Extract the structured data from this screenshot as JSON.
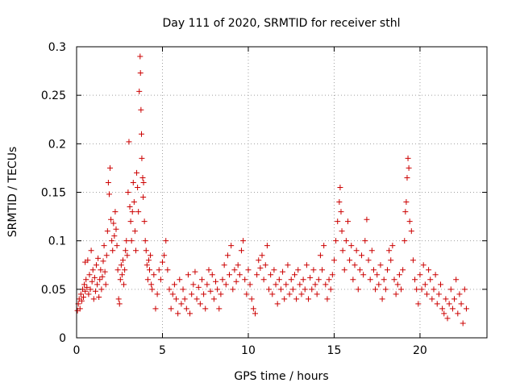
{
  "chart_data": {
    "type": "scatter",
    "title": "Day 111 of 2020, SRMTID for receiver sthl",
    "xlabel": "GPS time / hours",
    "ylabel": "SRMTID / TECUs",
    "xlim": [
      0,
      23.9
    ],
    "ylim": [
      0,
      0.3
    ],
    "xticks": [
      0,
      5,
      10,
      15,
      20
    ],
    "xtick_labels": [
      "0",
      "5",
      "10",
      "15",
      "20"
    ],
    "yticks": [
      0,
      0.05,
      0.1,
      0.15,
      0.2,
      0.25,
      0.3
    ],
    "ytick_labels": [
      "0",
      "0.05",
      "0.1",
      "0.15",
      "0.2",
      "0.25",
      "0.3"
    ],
    "grid": true,
    "marker": "+",
    "color": "#cc0000",
    "series": [
      {
        "name": "SRMTID",
        "points": [
          [
            0.05,
            0.028
          ],
          [
            0.1,
            0.035
          ],
          [
            0.15,
            0.04
          ],
          [
            0.2,
            0.03
          ],
          [
            0.25,
            0.045
          ],
          [
            0.3,
            0.038
          ],
          [
            0.35,
            0.05
          ],
          [
            0.4,
            0.042
          ],
          [
            0.45,
            0.055
          ],
          [
            0.5,
            0.048
          ],
          [
            0.5,
            0.078
          ],
          [
            0.55,
            0.06
          ],
          [
            0.6,
            0.052
          ],
          [
            0.65,
            0.08
          ],
          [
            0.7,
            0.045
          ],
          [
            0.75,
            0.065
          ],
          [
            0.8,
            0.05
          ],
          [
            0.85,
            0.09
          ],
          [
            0.9,
            0.058
          ],
          [
            0.95,
            0.07
          ],
          [
            1.0,
            0.04
          ],
          [
            1.05,
            0.062
          ],
          [
            1.1,
            0.048
          ],
          [
            1.15,
            0.075
          ],
          [
            1.2,
            0.055
          ],
          [
            1.25,
            0.082
          ],
          [
            1.3,
            0.042
          ],
          [
            1.35,
            0.06
          ],
          [
            1.4,
            0.07
          ],
          [
            1.45,
            0.05
          ],
          [
            1.5,
            0.063
          ],
          [
            1.55,
            0.079
          ],
          [
            1.6,
            0.095
          ],
          [
            1.65,
            0.068
          ],
          [
            1.7,
            0.055
          ],
          [
            1.75,
            0.085
          ],
          [
            1.8,
            0.11
          ],
          [
            1.85,
            0.16
          ],
          [
            1.9,
            0.148
          ],
          [
            1.95,
            0.175
          ],
          [
            2.0,
            0.122
          ],
          [
            2.05,
            0.1
          ],
          [
            2.1,
            0.09
          ],
          [
            2.15,
            0.118
          ],
          [
            2.2,
            0.105
          ],
          [
            2.25,
            0.13
          ],
          [
            2.3,
            0.112
          ],
          [
            2.35,
            0.095
          ],
          [
            2.4,
            0.07
          ],
          [
            2.45,
            0.04
          ],
          [
            2.5,
            0.035
          ],
          [
            2.55,
            0.06
          ],
          [
            2.6,
            0.075
          ],
          [
            2.65,
            0.065
          ],
          [
            2.7,
            0.08
          ],
          [
            2.75,
            0.055
          ],
          [
            2.8,
            0.07
          ],
          [
            2.85,
            0.09
          ],
          [
            2.9,
            0.1
          ],
          [
            2.95,
            0.085
          ],
          [
            3.0,
            0.15
          ],
          [
            3.05,
            0.202
          ],
          [
            3.1,
            0.135
          ],
          [
            3.15,
            0.12
          ],
          [
            3.2,
            0.1
          ],
          [
            3.25,
            0.13
          ],
          [
            3.3,
            0.16
          ],
          [
            3.35,
            0.14
          ],
          [
            3.4,
            0.11
          ],
          [
            3.45,
            0.09
          ],
          [
            3.5,
            0.17
          ],
          [
            3.55,
            0.155
          ],
          [
            3.6,
            0.13
          ],
          [
            3.65,
            0.254
          ],
          [
            3.7,
            0.29
          ],
          [
            3.72,
            0.273
          ],
          [
            3.75,
            0.235
          ],
          [
            3.78,
            0.21
          ],
          [
            3.8,
            0.185
          ],
          [
            3.85,
            0.165
          ],
          [
            3.88,
            0.145
          ],
          [
            3.9,
            0.16
          ],
          [
            3.95,
            0.12
          ],
          [
            4.0,
            0.1
          ],
          [
            4.05,
            0.09
          ],
          [
            4.1,
            0.075
          ],
          [
            4.15,
            0.06
          ],
          [
            4.2,
            0.08
          ],
          [
            4.25,
            0.07
          ],
          [
            4.3,
            0.085
          ],
          [
            4.35,
            0.055
          ],
          [
            4.4,
            0.05
          ],
          [
            4.5,
            0.065
          ],
          [
            4.6,
            0.03
          ],
          [
            4.7,
            0.045
          ],
          [
            4.8,
            0.07
          ],
          [
            4.9,
            0.06
          ],
          [
            5.0,
            0.078
          ],
          [
            5.1,
            0.085
          ],
          [
            5.2,
            0.1
          ],
          [
            5.3,
            0.07
          ],
          [
            5.4,
            0.05
          ],
          [
            5.5,
            0.03
          ],
          [
            5.6,
            0.045
          ],
          [
            5.7,
            0.055
          ],
          [
            5.8,
            0.04
          ],
          [
            5.9,
            0.025
          ],
          [
            6.0,
            0.06
          ],
          [
            6.1,
            0.035
          ],
          [
            6.2,
            0.05
          ],
          [
            6.3,
            0.04
          ],
          [
            6.4,
            0.03
          ],
          [
            6.5,
            0.065
          ],
          [
            6.6,
            0.025
          ],
          [
            6.7,
            0.045
          ],
          [
            6.8,
            0.055
          ],
          [
            6.9,
            0.068
          ],
          [
            7.0,
            0.04
          ],
          [
            7.1,
            0.052
          ],
          [
            7.2,
            0.035
          ],
          [
            7.3,
            0.06
          ],
          [
            7.4,
            0.045
          ],
          [
            7.5,
            0.03
          ],
          [
            7.6,
            0.055
          ],
          [
            7.7,
            0.07
          ],
          [
            7.8,
            0.048
          ],
          [
            7.9,
            0.065
          ],
          [
            8.0,
            0.04
          ],
          [
            8.1,
            0.058
          ],
          [
            8.2,
            0.05
          ],
          [
            8.3,
            0.03
          ],
          [
            8.4,
            0.045
          ],
          [
            8.5,
            0.06
          ],
          [
            8.6,
            0.075
          ],
          [
            8.7,
            0.055
          ],
          [
            8.8,
            0.085
          ],
          [
            8.9,
            0.065
          ],
          [
            9.0,
            0.095
          ],
          [
            9.1,
            0.05
          ],
          [
            9.2,
            0.07
          ],
          [
            9.3,
            0.058
          ],
          [
            9.4,
            0.075
          ],
          [
            9.5,
            0.065
          ],
          [
            9.6,
            0.09
          ],
          [
            9.7,
            0.1
          ],
          [
            9.8,
            0.06
          ],
          [
            9.9,
            0.045
          ],
          [
            10.0,
            0.07
          ],
          [
            10.1,
            0.055
          ],
          [
            10.2,
            0.04
          ],
          [
            10.3,
            0.03
          ],
          [
            10.4,
            0.025
          ],
          [
            10.5,
            0.065
          ],
          [
            10.6,
            0.08
          ],
          [
            10.7,
            0.072
          ],
          [
            10.8,
            0.085
          ],
          [
            10.9,
            0.06
          ],
          [
            11.0,
            0.075
          ],
          [
            11.1,
            0.095
          ],
          [
            11.2,
            0.05
          ],
          [
            11.3,
            0.065
          ],
          [
            11.4,
            0.045
          ],
          [
            11.5,
            0.07
          ],
          [
            11.6,
            0.055
          ],
          [
            11.7,
            0.035
          ],
          [
            11.8,
            0.06
          ],
          [
            11.9,
            0.05
          ],
          [
            12.0,
            0.068
          ],
          [
            12.1,
            0.04
          ],
          [
            12.2,
            0.055
          ],
          [
            12.3,
            0.075
          ],
          [
            12.4,
            0.045
          ],
          [
            12.5,
            0.06
          ],
          [
            12.6,
            0.05
          ],
          [
            12.7,
            0.065
          ],
          [
            12.8,
            0.04
          ],
          [
            12.9,
            0.07
          ],
          [
            13.0,
            0.055
          ],
          [
            13.1,
            0.045
          ],
          [
            13.2,
            0.06
          ],
          [
            13.3,
            0.05
          ],
          [
            13.4,
            0.075
          ],
          [
            13.5,
            0.04
          ],
          [
            13.6,
            0.062
          ],
          [
            13.7,
            0.05
          ],
          [
            13.8,
            0.07
          ],
          [
            13.9,
            0.055
          ],
          [
            14.0,
            0.045
          ],
          [
            14.1,
            0.06
          ],
          [
            14.2,
            0.085
          ],
          [
            14.3,
            0.07
          ],
          [
            14.4,
            0.095
          ],
          [
            14.5,
            0.055
          ],
          [
            14.6,
            0.04
          ],
          [
            14.7,
            0.06
          ],
          [
            14.8,
            0.05
          ],
          [
            14.9,
            0.065
          ],
          [
            15.0,
            0.08
          ],
          [
            15.1,
            0.1
          ],
          [
            15.2,
            0.12
          ],
          [
            15.3,
            0.14
          ],
          [
            15.35,
            0.155
          ],
          [
            15.4,
            0.13
          ],
          [
            15.45,
            0.11
          ],
          [
            15.5,
            0.09
          ],
          [
            15.6,
            0.07
          ],
          [
            15.7,
            0.1
          ],
          [
            15.8,
            0.12
          ],
          [
            15.9,
            0.08
          ],
          [
            16.0,
            0.095
          ],
          [
            16.1,
            0.06
          ],
          [
            16.2,
            0.075
          ],
          [
            16.3,
            0.09
          ],
          [
            16.4,
            0.05
          ],
          [
            16.5,
            0.07
          ],
          [
            16.6,
            0.085
          ],
          [
            16.7,
            0.065
          ],
          [
            16.8,
            0.1
          ],
          [
            16.9,
            0.122
          ],
          [
            17.0,
            0.08
          ],
          [
            17.1,
            0.06
          ],
          [
            17.2,
            0.09
          ],
          [
            17.3,
            0.07
          ],
          [
            17.4,
            0.05
          ],
          [
            17.5,
            0.065
          ],
          [
            17.6,
            0.055
          ],
          [
            17.7,
            0.075
          ],
          [
            17.8,
            0.04
          ],
          [
            17.9,
            0.06
          ],
          [
            18.0,
            0.05
          ],
          [
            18.1,
            0.07
          ],
          [
            18.2,
            0.09
          ],
          [
            18.3,
            0.08
          ],
          [
            18.4,
            0.095
          ],
          [
            18.5,
            0.06
          ],
          [
            18.6,
            0.045
          ],
          [
            18.7,
            0.055
          ],
          [
            18.8,
            0.065
          ],
          [
            18.9,
            0.05
          ],
          [
            19.0,
            0.07
          ],
          [
            19.1,
            0.1
          ],
          [
            19.15,
            0.13
          ],
          [
            19.2,
            0.14
          ],
          [
            19.25,
            0.165
          ],
          [
            19.3,
            0.185
          ],
          [
            19.35,
            0.175
          ],
          [
            19.4,
            0.12
          ],
          [
            19.5,
            0.11
          ],
          [
            19.6,
            0.08
          ],
          [
            19.7,
            0.06
          ],
          [
            19.8,
            0.05
          ],
          [
            19.9,
            0.035
          ],
          [
            20.0,
            0.065
          ],
          [
            20.1,
            0.05
          ],
          [
            20.2,
            0.075
          ],
          [
            20.3,
            0.055
          ],
          [
            20.4,
            0.045
          ],
          [
            20.5,
            0.07
          ],
          [
            20.6,
            0.06
          ],
          [
            20.7,
            0.04
          ],
          [
            20.8,
            0.05
          ],
          [
            20.9,
            0.065
          ],
          [
            21.0,
            0.035
          ],
          [
            21.1,
            0.045
          ],
          [
            21.2,
            0.055
          ],
          [
            21.3,
            0.03
          ],
          [
            21.4,
            0.025
          ],
          [
            21.5,
            0.04
          ],
          [
            21.6,
            0.02
          ],
          [
            21.7,
            0.035
          ],
          [
            21.8,
            0.05
          ],
          [
            21.9,
            0.03
          ],
          [
            22.0,
            0.04
          ],
          [
            22.1,
            0.06
          ],
          [
            22.2,
            0.025
          ],
          [
            22.3,
            0.045
          ],
          [
            22.4,
            0.035
          ],
          [
            22.5,
            0.015
          ],
          [
            22.6,
            0.05
          ],
          [
            22.7,
            0.03
          ]
        ]
      }
    ]
  }
}
